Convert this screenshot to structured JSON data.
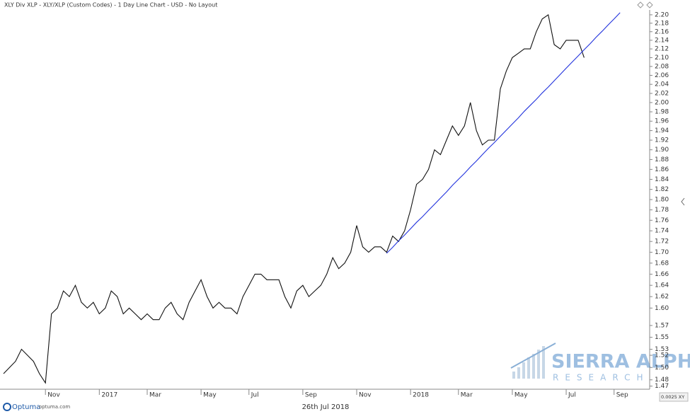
{
  "chart_data": {
    "type": "line",
    "title": "XLY Div XLP - XLY/XLP (Custom Codes) - 1 Day Line Chart - USD - No Layout",
    "date_label": "26th Jul 2018",
    "scale_label": "0.0025 XY",
    "brand": "Optuma",
    "brand_url": "optuma.com",
    "watermark_title": "SIERRA ALPHA",
    "watermark_subtitle": "RESEARCH",
    "log_scale": true,
    "grid": false,
    "categories": [
      null,
      null,
      null,
      null,
      null,
      null,
      null,
      "Nov",
      null,
      null,
      null,
      null,
      null,
      null,
      null,
      null,
      "2017",
      null,
      null,
      null,
      null,
      null,
      null,
      null,
      "Mar",
      null,
      null,
      null,
      null,
      null,
      null,
      null,
      null,
      "May",
      null,
      null,
      null,
      null,
      null,
      null,
      null,
      "Jul",
      null,
      null,
      null,
      null,
      null,
      null,
      null,
      null,
      "Sep",
      null,
      null,
      null,
      null,
      null,
      null,
      null,
      null,
      "Nov",
      null,
      null,
      null,
      null,
      null,
      null,
      null,
      null,
      "2018",
      null,
      null,
      null,
      null,
      null,
      null,
      null,
      "Mar",
      null,
      null,
      null,
      null,
      null,
      null,
      null,
      null,
      "May",
      null,
      null,
      null,
      null,
      null,
      null,
      null,
      null,
      "Jul",
      null,
      null,
      null,
      null,
      null,
      null,
      null,
      "Sep",
      null,
      null,
      null,
      null,
      null
    ],
    "series": [
      {
        "color": "#111111",
        "values": [
          1.49,
          1.5,
          1.51,
          1.53,
          1.52,
          1.51,
          1.49,
          1.475,
          1.59,
          1.6,
          1.63,
          1.62,
          1.64,
          1.61,
          1.6,
          1.61,
          1.59,
          1.6,
          1.63,
          1.62,
          1.59,
          1.6,
          1.59,
          1.58,
          1.59,
          1.58,
          1.58,
          1.6,
          1.61,
          1.59,
          1.58,
          1.61,
          1.63,
          1.65,
          1.62,
          1.6,
          1.61,
          1.6,
          1.6,
          1.59,
          1.62,
          1.64,
          1.66,
          1.66,
          1.65,
          1.65,
          1.65,
          1.62,
          1.6,
          1.63,
          1.64,
          1.62,
          1.63,
          1.64,
          1.66,
          1.69,
          1.67,
          1.68,
          1.7,
          1.75,
          1.71,
          1.7,
          1.71,
          1.71,
          1.7,
          1.73,
          1.72,
          1.74,
          1.78,
          1.83,
          1.84,
          1.86,
          1.9,
          1.89,
          1.92,
          1.95,
          1.93,
          1.95,
          2.0,
          1.94,
          1.91,
          1.92,
          1.92,
          2.03,
          2.07,
          2.1,
          2.11,
          2.12,
          2.12,
          2.16,
          2.19,
          2.2,
          2.13,
          2.12,
          2.14,
          2.14,
          2.14,
          2.1,
          null,
          null,
          null,
          null,
          null,
          null,
          null,
          null,
          null,
          null
        ]
      },
      {
        "color": "#2233dd",
        "values": [
          null,
          null,
          null,
          null,
          null,
          null,
          null,
          null,
          null,
          null,
          null,
          null,
          null,
          null,
          null,
          null,
          null,
          null,
          null,
          null,
          null,
          null,
          null,
          null,
          null,
          null,
          null,
          null,
          null,
          null,
          null,
          null,
          null,
          null,
          null,
          null,
          null,
          null,
          null,
          null,
          null,
          null,
          null,
          null,
          null,
          null,
          null,
          null,
          null,
          null,
          null,
          null,
          null,
          null,
          null,
          null,
          null,
          null,
          null,
          null,
          null,
          null,
          null,
          null,
          1.698,
          1.709,
          1.721,
          1.732,
          1.744,
          1.756,
          1.767,
          1.779,
          1.791,
          1.803,
          1.815,
          1.828,
          1.84,
          1.852,
          1.865,
          1.877,
          1.89,
          1.903,
          1.915,
          1.928,
          1.941,
          1.954,
          1.967,
          1.981,
          1.994,
          2.007,
          2.021,
          2.034,
          2.048,
          2.062,
          2.076,
          2.09,
          2.104,
          2.118,
          2.132,
          2.147,
          2.161,
          2.176,
          2.19,
          2.205,
          null,
          null,
          null,
          null
        ]
      }
    ],
    "ylim": [
      1.465,
      2.21
    ],
    "yticks": [
      {
        "value": 2.2,
        "label": "2.20"
      },
      {
        "value": 2.18,
        "label": "2.18"
      },
      {
        "value": 2.16,
        "label": "2.16"
      },
      {
        "value": 2.14,
        "label": "2.14"
      },
      {
        "value": 2.12,
        "label": "2.12"
      },
      {
        "value": 2.1,
        "label": "2.10"
      },
      {
        "value": 2.08,
        "label": "2.08"
      },
      {
        "value": 2.06,
        "label": "2.06"
      },
      {
        "value": 2.04,
        "label": "2.04"
      },
      {
        "value": 2.02,
        "label": "2.02"
      },
      {
        "value": 2,
        "label": "2.00"
      },
      {
        "value": 1.98,
        "label": "1.98"
      },
      {
        "value": 1.96,
        "label": "1.96"
      },
      {
        "value": 1.94,
        "label": "1.94"
      },
      {
        "value": 1.92,
        "label": "1.92"
      },
      {
        "value": 1.9,
        "label": "1.90"
      },
      {
        "value": 1.88,
        "label": "1.88"
      },
      {
        "value": 1.86,
        "label": "1.86"
      },
      {
        "value": 1.84,
        "label": "1.84"
      },
      {
        "value": 1.82,
        "label": "1.82"
      },
      {
        "value": 1.8,
        "label": "1.80"
      },
      {
        "value": 1.78,
        "label": "1.78"
      },
      {
        "value": 1.76,
        "label": "1.76"
      },
      {
        "value": 1.74,
        "label": "1.74"
      },
      {
        "value": 1.72,
        "label": "1.72"
      },
      {
        "value": 1.7,
        "label": "1.70"
      },
      {
        "value": 1.68,
        "label": "1.68"
      },
      {
        "value": 1.66,
        "label": "1.66"
      },
      {
        "value": 1.64,
        "label": "1.64"
      },
      {
        "value": 1.62,
        "label": "1.62"
      },
      {
        "value": 1.6,
        "label": "1.60"
      },
      {
        "value": 1.57,
        "label": "1.57"
      },
      {
        "value": 1.55,
        "label": "1.55"
      },
      {
        "value": 1.53,
        "label": "1.53"
      },
      {
        "value": 1.52,
        "label": "1.52"
      },
      {
        "value": 1.5,
        "label": "1.50"
      },
      {
        "value": 1.48,
        "label": "1.48"
      },
      {
        "value": 1.47,
        "label": "1.47"
      }
    ]
  }
}
